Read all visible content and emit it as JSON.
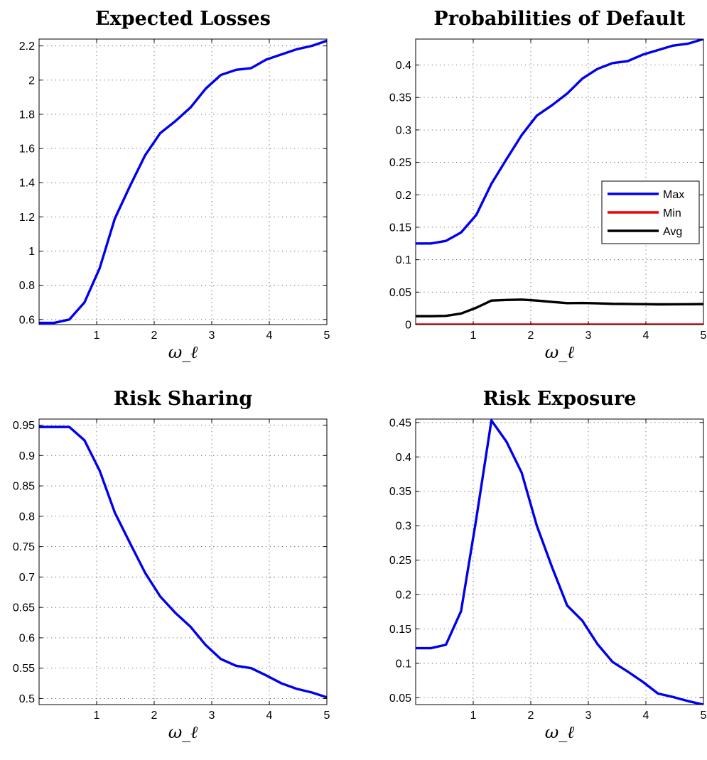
{
  "chart_data": [
    {
      "id": "expected-losses",
      "type": "line",
      "title": "Expected Losses",
      "xlabel": "ω_ℓ",
      "ylabel": "",
      "xlim": [
        0,
        5
      ],
      "ylim": [
        0.57,
        2.24
      ],
      "xticks": [
        1,
        2,
        3,
        4,
        5
      ],
      "yticks": [
        0.6,
        0.8,
        1,
        1.2,
        1.4,
        1.6,
        1.8,
        2,
        2.2
      ],
      "ytick_labels": [
        "0.6",
        "0.8",
        "1",
        "1.2",
        "1.4",
        "1.6",
        "1.8",
        "2",
        "2.2"
      ],
      "xtick_labels": [
        "1",
        "2",
        "3",
        "4",
        "5"
      ],
      "grid": true,
      "series": [
        {
          "color": "#0000ee",
          "x": [
            0,
            0.263,
            0.526,
            0.789,
            1.053,
            1.316,
            1.579,
            1.842,
            2.105,
            2.368,
            2.632,
            2.895,
            3.158,
            3.421,
            3.684,
            3.947,
            4.211,
            4.474,
            4.737,
            5.0
          ],
          "y": [
            0.58,
            0.58,
            0.6,
            0.7,
            0.9,
            1.19,
            1.38,
            1.56,
            1.69,
            1.76,
            1.84,
            1.95,
            2.03,
            2.06,
            2.07,
            2.12,
            2.15,
            2.18,
            2.2,
            2.23
          ]
        }
      ]
    },
    {
      "id": "probabilities-of-default",
      "type": "line",
      "title": "Probabilities of Default",
      "xlabel": "ω_ℓ",
      "ylabel": "",
      "xlim": [
        0,
        5
      ],
      "ylim": [
        0,
        0.44
      ],
      "xticks": [
        1,
        2,
        3,
        4,
        5
      ],
      "yticks": [
        0,
        0.05,
        0.1,
        0.15,
        0.2,
        0.25,
        0.3,
        0.35,
        0.4
      ],
      "ytick_labels": [
        "0",
        "0.05",
        "0.1",
        "0.15",
        "0.2",
        "0.25",
        "0.3",
        "0.35",
        "0.4"
      ],
      "xtick_labels": [
        "1",
        "2",
        "3",
        "4",
        "5"
      ],
      "grid": true,
      "legend": "right",
      "series": [
        {
          "name": "Max",
          "color": "#0000ee",
          "x": [
            0,
            0.263,
            0.526,
            0.789,
            1.053,
            1.316,
            1.579,
            1.842,
            2.105,
            2.368,
            2.632,
            2.895,
            3.158,
            3.421,
            3.684,
            3.947,
            4.211,
            4.474,
            4.737,
            5.0
          ],
          "y": [
            0.125,
            0.125,
            0.129,
            0.142,
            0.169,
            0.217,
            0.255,
            0.292,
            0.322,
            0.338,
            0.356,
            0.379,
            0.394,
            0.403,
            0.406,
            0.416,
            0.423,
            0.43,
            0.433,
            0.44
          ]
        },
        {
          "name": "Min",
          "color": "#ee0000",
          "x": [
            0,
            5.0
          ],
          "y": [
            0,
            0
          ]
        },
        {
          "name": "Avg",
          "color": "#000000",
          "x": [
            0,
            0.263,
            0.526,
            0.789,
            1.053,
            1.316,
            1.579,
            1.842,
            2.105,
            2.368,
            2.632,
            2.895,
            3.158,
            3.421,
            3.684,
            3.947,
            4.211,
            4.474,
            4.737,
            5.0
          ],
          "y": [
            0.013,
            0.013,
            0.0135,
            0.017,
            0.026,
            0.037,
            0.038,
            0.0385,
            0.037,
            0.035,
            0.033,
            0.0333,
            0.0328,
            0.032,
            0.0318,
            0.0315,
            0.0312,
            0.0313,
            0.0314,
            0.0316
          ]
        }
      ]
    },
    {
      "id": "risk-sharing",
      "type": "line",
      "title": "Risk Sharing",
      "xlabel": "ω_ℓ",
      "ylabel": "",
      "xlim": [
        0,
        5
      ],
      "ylim": [
        0.49,
        0.96
      ],
      "xticks": [
        1,
        2,
        3,
        4,
        5
      ],
      "yticks": [
        0.5,
        0.55,
        0.6,
        0.65,
        0.7,
        0.75,
        0.8,
        0.85,
        0.9,
        0.95
      ],
      "ytick_labels": [
        "0.5",
        "0.55",
        "0.6",
        "0.65",
        "0.7",
        "0.75",
        "0.8",
        "0.85",
        "0.9",
        "0.95"
      ],
      "xtick_labels": [
        "1",
        "2",
        "3",
        "4",
        "5"
      ],
      "grid": true,
      "series": [
        {
          "color": "#0000ee",
          "x": [
            0,
            0.263,
            0.526,
            0.789,
            1.053,
            1.316,
            1.579,
            1.842,
            2.105,
            2.368,
            2.632,
            2.895,
            3.158,
            3.421,
            3.684,
            3.947,
            4.211,
            4.474,
            4.737,
            5.0
          ],
          "y": [
            0.947,
            0.947,
            0.947,
            0.925,
            0.875,
            0.806,
            0.756,
            0.707,
            0.668,
            0.641,
            0.618,
            0.588,
            0.565,
            0.554,
            0.55,
            0.538,
            0.525,
            0.516,
            0.51,
            0.502
          ]
        }
      ]
    },
    {
      "id": "risk-exposure",
      "type": "line",
      "title": "Risk Exposure",
      "xlabel": "ω_ℓ",
      "ylabel": "",
      "xlim": [
        0,
        5
      ],
      "ylim": [
        0.04,
        0.455
      ],
      "xticks": [
        1,
        2,
        3,
        4,
        5
      ],
      "yticks": [
        0.05,
        0.1,
        0.15,
        0.2,
        0.25,
        0.3,
        0.35,
        0.4,
        0.45
      ],
      "ytick_labels": [
        "0.05",
        "0.1",
        "0.15",
        "0.2",
        "0.25",
        "0.3",
        "0.35",
        "0.4",
        "0.45"
      ],
      "xtick_labels": [
        "1",
        "2",
        "3",
        "4",
        "5"
      ],
      "grid": true,
      "series": [
        {
          "color": "#0000ee",
          "x": [
            0,
            0.263,
            0.526,
            0.789,
            1.053,
            1.316,
            1.579,
            1.842,
            2.105,
            2.368,
            2.632,
            2.895,
            3.158,
            3.421,
            3.684,
            3.947,
            4.211,
            4.474,
            4.737,
            5.0
          ],
          "y": [
            0.122,
            0.122,
            0.127,
            0.176,
            0.31,
            0.453,
            0.422,
            0.377,
            0.3,
            0.24,
            0.184,
            0.162,
            0.128,
            0.102,
            0.088,
            0.073,
            0.056,
            0.051,
            0.045,
            0.04
          ]
        }
      ]
    }
  ]
}
